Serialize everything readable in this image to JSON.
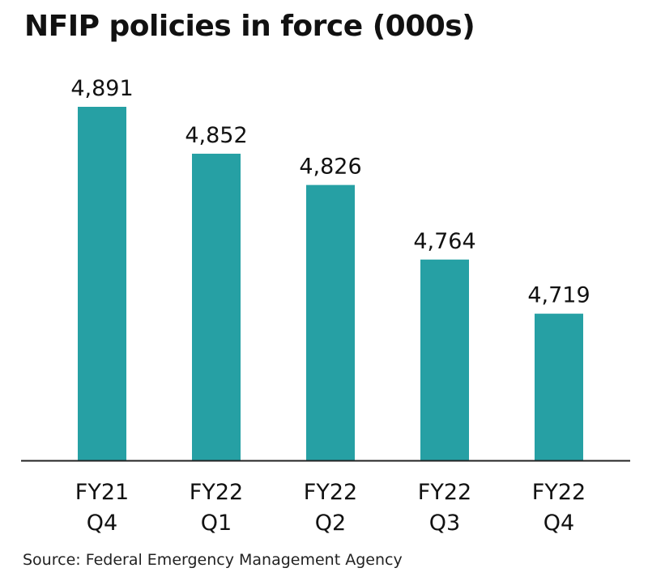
{
  "chart_data": {
    "type": "bar",
    "title": "NFIP policies in force (000s)",
    "categories": [
      [
        "FY21",
        "Q4"
      ],
      [
        "FY22",
        "Q1"
      ],
      [
        "FY22",
        "Q2"
      ],
      [
        "FY22",
        "Q3"
      ],
      [
        "FY22",
        "Q4"
      ]
    ],
    "values": [
      4891,
      4852,
      4826,
      4764,
      4719
    ],
    "value_labels": [
      "4,891",
      "4,852",
      "4,826",
      "4,764",
      "4,719"
    ],
    "xlabel": "",
    "ylabel": "",
    "ylim": [
      4597,
      4891
    ],
    "grid": false,
    "bar_color": "#26a0a4",
    "source": "Source: Federal Emergency Management Agency"
  }
}
